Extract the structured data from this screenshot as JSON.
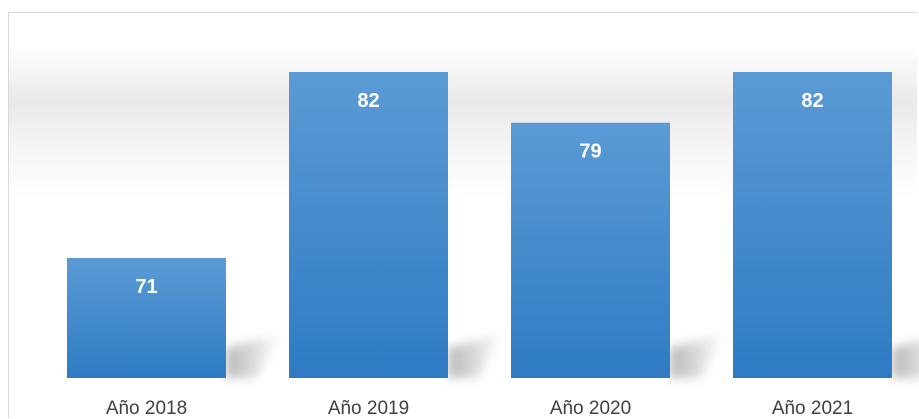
{
  "chart_data": {
    "type": "bar",
    "categories": [
      "Año 2018",
      "Año 2019",
      "Año 2020",
      "Año 2021"
    ],
    "values": [
      71,
      82,
      79,
      82
    ],
    "title": "",
    "xlabel": "",
    "ylabel": "",
    "ylim": [
      60,
      84
    ],
    "grid": false,
    "legend": "none",
    "data_labels": [
      "71",
      "82",
      "79",
      "82"
    ],
    "colors": {
      "bar_top": "#5b9bd5",
      "bar_bottom": "#2e7bc4",
      "data_label": "#ffffff",
      "axis_label": "#404040"
    }
  }
}
